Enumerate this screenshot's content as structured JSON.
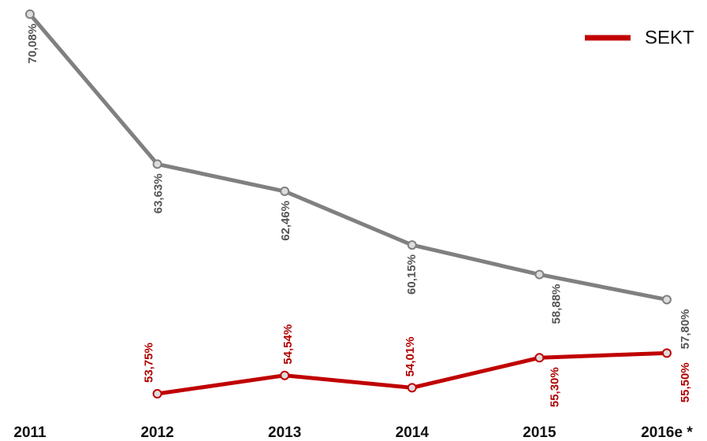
{
  "chart_data": {
    "type": "line",
    "categories": [
      "2011",
      "2012",
      "2013",
      "2014",
      "2015",
      "2016e *"
    ],
    "series": [
      {
        "color": "#808080",
        "values": [
          70.08,
          63.63,
          62.46,
          60.15,
          58.88,
          57.8
        ],
        "value_labels": [
          "70,08%",
          "63,63%",
          "62,46%",
          "60,15%",
          "58,88%",
          "57,80%"
        ]
      },
      {
        "name": "SEKT",
        "color": "#c00000",
        "values": [
          null,
          53.75,
          54.54,
          54.01,
          55.3,
          55.5
        ],
        "value_labels": [
          null,
          "53,75%",
          "54,54%",
          "54,01%",
          "55,30%",
          "55,50%"
        ]
      }
    ],
    "ylim": [
      53.5,
      70.5
    ],
    "legend": "top-right"
  }
}
